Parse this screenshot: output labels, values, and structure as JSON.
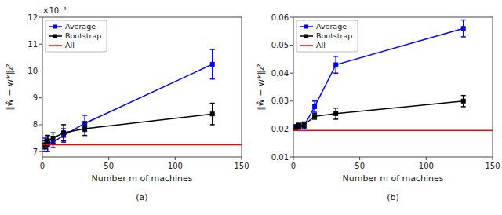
{
  "chart_data": [
    {
      "type": "line",
      "title": "(a)",
      "x_label": "Number m of machines",
      "y_label": "‖ŵ − w*‖₂²",
      "annotation": "×10⁻⁴",
      "x": [
        2,
        4,
        8,
        16,
        32,
        128
      ],
      "series": [
        {
          "name": "Average",
          "color": "#0000FF",
          "marker": "square",
          "line_style": "solid",
          "values": [
            0.000725,
            0.00073,
            0.000735,
            0.00076,
            0.000805,
            0.001025
          ],
          "errors": [
            2.5e-05,
            3e-05,
            2e-05,
            2.5e-05,
            3e-05,
            5.5e-05
          ]
        },
        {
          "name": "Bootstrap",
          "color": "#000000",
          "marker": "square",
          "line_style": "solid",
          "values": [
            0.000725,
            0.00074,
            0.00075,
            0.00077,
            0.000785,
            0.00084
          ],
          "errors": [
            1.5e-05,
            2e-05,
            2e-05,
            3e-05,
            2.5e-05,
            4e-05
          ]
        },
        {
          "name": "All",
          "type": "hline",
          "color": "#FF0000",
          "line_style": "solid",
          "value": 0.000725
        }
      ],
      "xlim": [
        0,
        150
      ],
      "xticks": [
        0,
        50,
        100,
        150
      ],
      "ylim": [
        0.00068,
        0.0012
      ],
      "yticks": [
        {
          "value": 0.0007,
          "label": "7"
        },
        {
          "value": 0.0008,
          "label": "8"
        },
        {
          "value": 0.0009,
          "label": "9"
        },
        {
          "value": 0.001,
          "label": "10"
        },
        {
          "value": 0.0011,
          "label": "11"
        },
        {
          "value": 0.0012,
          "label": "12"
        }
      ],
      "legend": "upper left",
      "grid": false
    },
    {
      "type": "line",
      "title": "(b)",
      "x_label": "Number m of machines",
      "y_label": "‖ŵ − w*‖₂²",
      "x": [
        2,
        4,
        8,
        16,
        32,
        128
      ],
      "series": [
        {
          "name": "Average",
          "color": "#0000FF",
          "marker": "square",
          "line_style": "solid",
          "values": [
            0.0205,
            0.021,
            0.021,
            0.028,
            0.043,
            0.056
          ],
          "errors": [
            0.001,
            0.001,
            0.001,
            0.002,
            0.003,
            0.003
          ]
        },
        {
          "name": "Bootstrap",
          "color": "#000000",
          "marker": "square",
          "line_style": "solid",
          "values": [
            0.0205,
            0.021,
            0.0215,
            0.0245,
            0.0255,
            0.03
          ],
          "errors": [
            0.001,
            0.001,
            0.001,
            0.001,
            0.002,
            0.002
          ]
        },
        {
          "name": "All",
          "type": "hline",
          "color": "#FF0000",
          "line_style": "solid",
          "value": 0.0195
        }
      ],
      "xlim": [
        0,
        150
      ],
      "xticks": [
        0,
        50,
        100,
        150
      ],
      "ylim": [
        0.01,
        0.06
      ],
      "yticks": [
        0.01,
        0.02,
        0.03,
        0.04,
        0.05,
        0.06
      ],
      "legend": "upper left",
      "grid": false
    }
  ]
}
